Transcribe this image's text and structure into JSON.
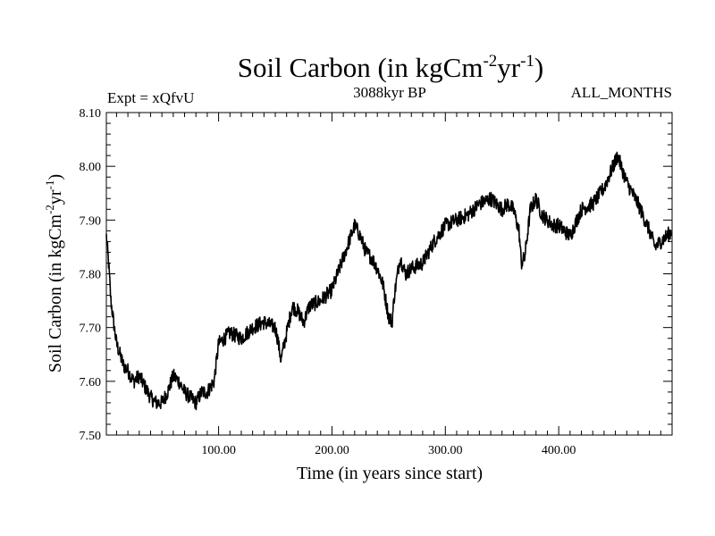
{
  "chart_data": {
    "type": "line",
    "title": "Soil Carbon (in kgCm",
    "title_exp1": "-2",
    "title_mid": "yr",
    "title_exp2": "-1",
    "title_end": ")",
    "left_label": "Expt = xQfvU",
    "center_label": "3088kyr BP",
    "right_label": "ALL_MONTHS",
    "xlabel": "Time (in years since start)",
    "ylabel": "Soil Carbon (in kgCm",
    "ylabel_exp1": "-2",
    "ylabel_mid": "yr",
    "ylabel_exp2": "-1",
    "ylabel_end": ")",
    "xlim": [
      1,
      500
    ],
    "ylim": [
      7.5,
      8.1
    ],
    "x_ticks": [
      {
        "value": 100,
        "label": "100.00"
      },
      {
        "value": 200,
        "label": "200.00"
      },
      {
        "value": 300,
        "label": "300.00"
      },
      {
        "value": 400,
        "label": "400.00"
      }
    ],
    "y_ticks": [
      {
        "value": 7.5,
        "label": "7.50"
      },
      {
        "value": 7.6,
        "label": "7.60"
      },
      {
        "value": 7.7,
        "label": "7.70"
      },
      {
        "value": 7.8,
        "label": "7.80"
      },
      {
        "value": 7.9,
        "label": "7.90"
      },
      {
        "value": 8.0,
        "label": "8.00"
      },
      {
        "value": 8.1,
        "label": "8.10"
      }
    ],
    "series": [
      {
        "name": "Soil Carbon",
        "color": "#000000",
        "x": [
          1,
          3,
          5,
          8,
          10,
          13,
          16,
          20,
          25,
          30,
          35,
          40,
          45,
          50,
          55,
          60,
          65,
          70,
          75,
          80,
          85,
          90,
          93,
          96,
          100,
          110,
          120,
          130,
          140,
          150,
          152,
          155,
          160,
          165,
          170,
          175,
          180,
          190,
          200,
          205,
          210,
          215,
          220,
          225,
          230,
          235,
          240,
          245,
          250,
          253,
          255,
          260,
          265,
          270,
          280,
          290,
          300,
          310,
          320,
          330,
          340,
          345,
          350,
          355,
          360,
          365,
          367,
          370,
          375,
          380,
          385,
          390,
          395,
          400,
          410,
          420,
          430,
          440,
          450,
          452,
          455,
          460,
          470,
          480,
          485,
          490,
          495,
          500
        ],
        "y": [
          7.87,
          7.82,
          7.75,
          7.7,
          7.67,
          7.65,
          7.63,
          7.62,
          7.6,
          7.61,
          7.59,
          7.57,
          7.56,
          7.56,
          7.58,
          7.61,
          7.6,
          7.58,
          7.57,
          7.56,
          7.58,
          7.58,
          7.59,
          7.6,
          7.67,
          7.69,
          7.68,
          7.7,
          7.71,
          7.7,
          7.68,
          7.64,
          7.69,
          7.74,
          7.73,
          7.71,
          7.74,
          7.75,
          7.77,
          7.8,
          7.83,
          7.86,
          7.89,
          7.87,
          7.84,
          7.83,
          7.81,
          7.78,
          7.72,
          7.71,
          7.76,
          7.83,
          7.8,
          7.81,
          7.82,
          7.86,
          7.89,
          7.9,
          7.91,
          7.93,
          7.94,
          7.93,
          7.92,
          7.93,
          7.92,
          7.88,
          7.82,
          7.83,
          7.92,
          7.94,
          7.91,
          7.9,
          7.89,
          7.89,
          7.87,
          7.92,
          7.93,
          7.96,
          8.01,
          8.02,
          8.0,
          7.97,
          7.93,
          7.88,
          7.85,
          7.86,
          7.87,
          7.88
        ]
      }
    ]
  }
}
